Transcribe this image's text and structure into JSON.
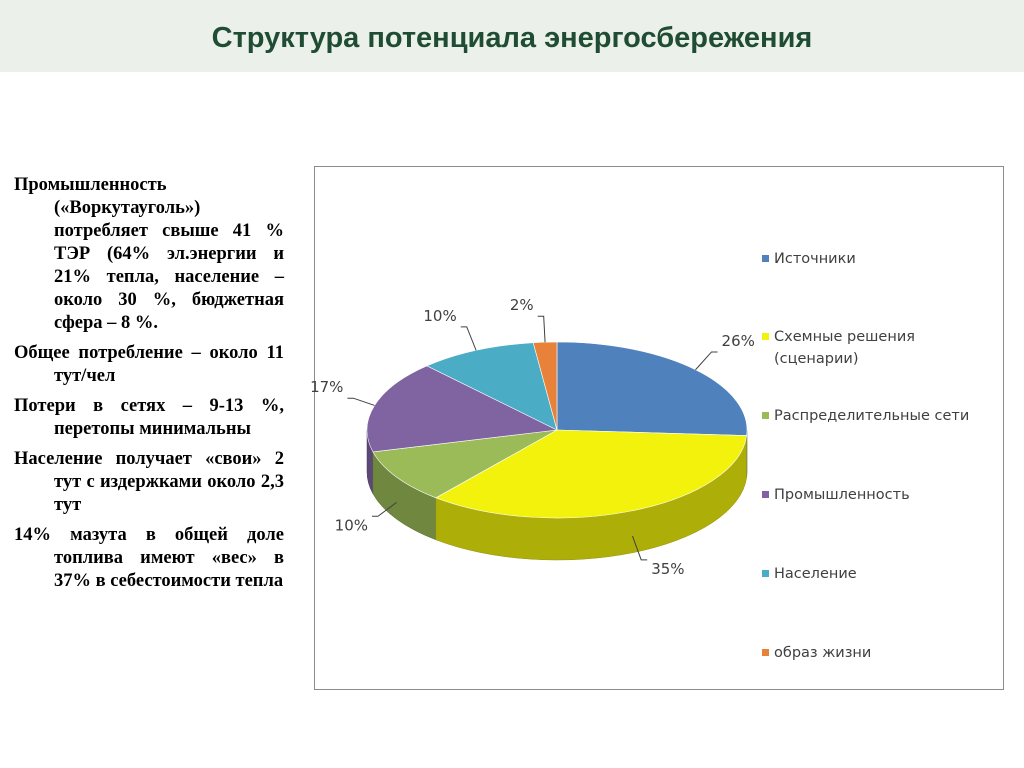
{
  "page": {
    "title": "Структура потенциала энергосбережения"
  },
  "text_bullets": [
    "Промышленность («Воркутауголь») потребляет свыше 41 % ТЭР (64% эл.энергии и 21% тепла, население – около 30 %, бюджетная сфера – 8 %.",
    "Общее потребление – около 11 тут/чел",
    "Потери в сетях – 9-13 %, перетопы минимальны",
    "Население получает «свои» 2 тут с издержками около 2,3 тут",
    "14% мазута в общей доле топлива имеют «вес» в 37% в себестоимости тепла"
  ],
  "chart_data": {
    "type": "pie",
    "style": "3d",
    "legend_position": "right",
    "categories": [
      "Источники",
      "Схемные решения (сценарии)",
      "Распределительные сети",
      "Промышленность",
      "Население",
      "образ жизни"
    ],
    "values": [
      26,
      35,
      10,
      17,
      10,
      2
    ],
    "labels": [
      "26%",
      "35%",
      "10%",
      "17%",
      "10%",
      "2%"
    ],
    "colors": [
      "#4f81bd",
      "#f2f20d",
      "#9bbb59",
      "#8064a2",
      "#4bacc6",
      "#e8823a"
    ]
  }
}
